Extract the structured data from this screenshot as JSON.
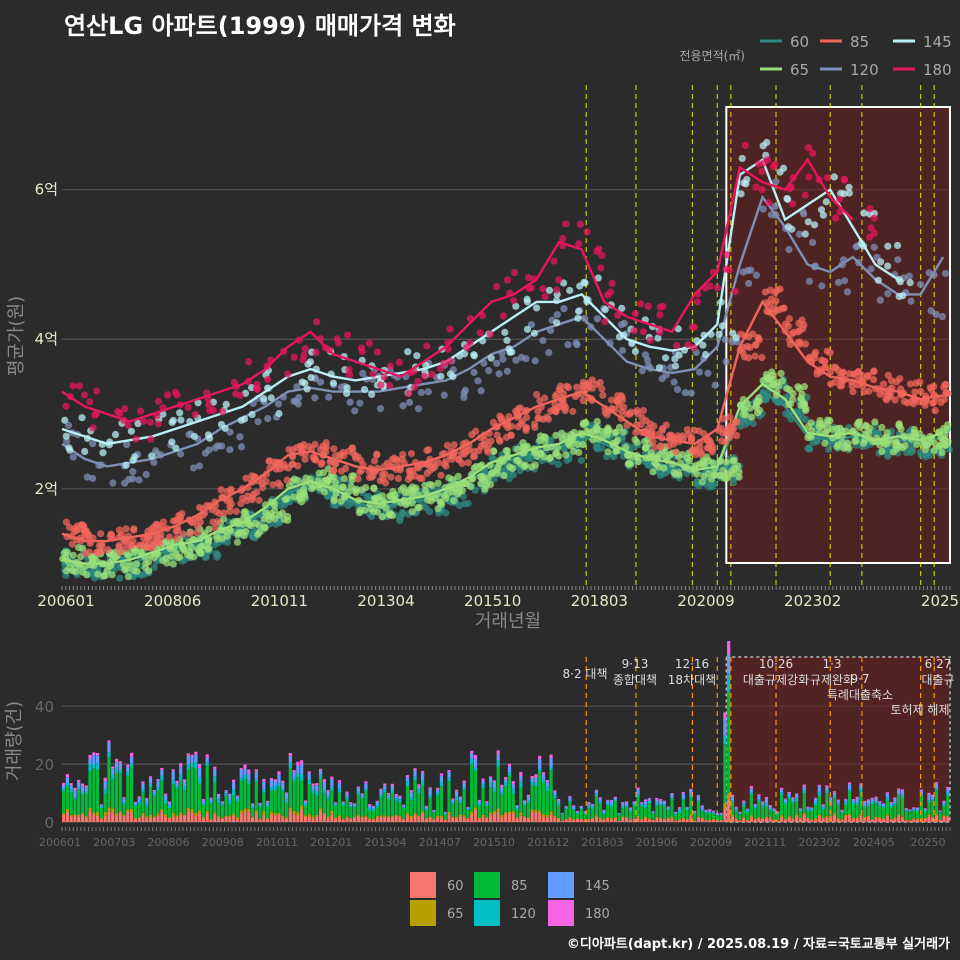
{
  "title": "연산LG 아파트(1999) 매매가격 변화",
  "credit": "©디아파트(dapt.kr) / 2025.08.19 / 자료=국토교통부 실거래가",
  "colors": {
    "bg": "#2b2b2b",
    "grid": "#555555",
    "title": "#ffffff",
    "area60": "#2e8b82",
    "area65": "#9be07a",
    "area85": "#f0665c",
    "area120": "#7f8fb5",
    "area145": "#b8f0f5",
    "area180": "#e8175d",
    "vol60": "#f8766d",
    "vol65": "#b79f00",
    "vol85": "#00ba38",
    "vol120": "#00bfc4",
    "vol145": "#619cff",
    "vol180": "#f564e3",
    "policy_line": "#e6e600",
    "policy_line_lower": "#ff9900",
    "highlight_fill": "#6b1e1e",
    "highlight_border": "#ffffff"
  },
  "chart_data": [
    {
      "type": "line",
      "title": "연산LG 아파트(1999) 매매가격 변화",
      "xlabel": "거래년월",
      "ylabel": "평균가(원)",
      "x_tick_labels": [
        "200601",
        "200806",
        "201011",
        "201304",
        "201510",
        "201803",
        "202009",
        "202302",
        "2025"
      ],
      "y_ticks": [
        2,
        4,
        6
      ],
      "y_tick_labels": [
        "2억",
        "4억",
        "6억"
      ],
      "ylim": [
        0.7,
        7.4
      ],
      "legend_title": "전용면적(㎡)",
      "legend_position": "top-right",
      "x": [
        2006.0,
        2006.5,
        2007.0,
        2007.5,
        2008.0,
        2008.5,
        2009.0,
        2009.5,
        2010.0,
        2010.5,
        2011.0,
        2011.5,
        2012.0,
        2012.5,
        2013.0,
        2013.5,
        2014.0,
        2014.5,
        2015.0,
        2015.5,
        2016.0,
        2016.5,
        2017.0,
        2017.5,
        2018.0,
        2018.5,
        2019.0,
        2019.5,
        2020.0,
        2020.5,
        2021.0,
        2021.5,
        2022.0,
        2022.5,
        2023.0,
        2023.5,
        2024.0,
        2024.5,
        2025.0,
        2025.5
      ],
      "series": [
        {
          "name": "60",
          "values": [
            1.0,
            0.95,
            0.97,
            1.0,
            1.1,
            1.2,
            1.25,
            1.4,
            1.5,
            1.7,
            1.95,
            2.05,
            1.95,
            1.8,
            1.75,
            1.8,
            1.85,
            1.95,
            2.1,
            2.3,
            2.4,
            2.5,
            2.55,
            2.7,
            2.6,
            2.45,
            2.35,
            2.3,
            2.2,
            2.25,
            3.0,
            3.3,
            3.1,
            2.7,
            2.65,
            2.7,
            2.6,
            2.65,
            2.6,
            2.7
          ]
        },
        {
          "name": "65",
          "values": [
            1.05,
            1.0,
            1.0,
            1.05,
            1.15,
            1.25,
            1.3,
            1.45,
            1.55,
            1.75,
            2.0,
            2.1,
            2.0,
            1.85,
            1.8,
            1.85,
            1.9,
            2.0,
            2.15,
            2.35,
            2.45,
            2.55,
            2.6,
            2.75,
            2.65,
            2.5,
            2.4,
            2.35,
            2.25,
            2.3,
            3.1,
            3.4,
            3.2,
            2.75,
            2.7,
            2.75,
            2.65,
            2.7,
            2.65,
            2.75
          ]
        },
        {
          "name": "85",
          "values": [
            1.4,
            1.3,
            1.3,
            1.35,
            1.4,
            1.5,
            1.65,
            1.85,
            2.0,
            2.2,
            2.45,
            2.5,
            2.4,
            2.3,
            2.25,
            2.3,
            2.35,
            2.45,
            2.6,
            2.8,
            2.95,
            3.1,
            3.2,
            3.3,
            3.1,
            2.9,
            2.7,
            2.65,
            2.6,
            2.8,
            3.9,
            4.5,
            4.1,
            3.7,
            3.5,
            3.45,
            3.35,
            3.3,
            3.2,
            3.25
          ]
        },
        {
          "name": "120",
          "values": [
            2.6,
            2.4,
            2.3,
            2.35,
            2.4,
            2.5,
            2.6,
            2.8,
            2.95,
            3.1,
            3.3,
            3.35,
            3.3,
            3.3,
            3.3,
            3.35,
            3.4,
            3.45,
            3.6,
            3.8,
            3.9,
            4.1,
            4.2,
            4.3,
            4.0,
            3.7,
            3.6,
            3.55,
            3.6,
            3.9,
            5.0,
            5.9,
            5.5,
            5.0,
            4.9,
            5.1,
            4.8,
            4.6,
            4.6,
            5.1
          ]
        },
        {
          "name": "145",
          "values": [
            2.8,
            2.7,
            2.6,
            2.65,
            2.7,
            2.8,
            2.9,
            3.0,
            3.1,
            3.3,
            3.5,
            3.6,
            3.5,
            3.45,
            3.5,
            3.55,
            3.6,
            3.7,
            3.9,
            4.1,
            4.3,
            4.5,
            4.5,
            4.6,
            4.3,
            4.0,
            3.9,
            3.85,
            3.9,
            4.2,
            6.2,
            6.4,
            5.6,
            5.8,
            6.0,
            5.5,
            5.0,
            4.8,
            null,
            null
          ]
        },
        {
          "name": "180",
          "values": [
            3.3,
            3.1,
            3.0,
            2.9,
            3.0,
            3.1,
            3.2,
            3.3,
            3.4,
            3.6,
            3.9,
            4.1,
            3.8,
            3.7,
            3.6,
            3.5,
            3.7,
            3.9,
            4.2,
            4.5,
            4.6,
            4.8,
            5.3,
            5.2,
            4.5,
            4.3,
            4.2,
            4.1,
            4.6,
            4.9,
            6.3,
            6.1,
            6.0,
            6.4,
            5.9,
            5.6,
            null,
            null,
            null,
            null
          ]
        }
      ],
      "policy_dates": [
        2017.6,
        2018.7,
        2019.95,
        2020.5,
        2020.8,
        2021.8,
        2023.0,
        2023.7,
        2025.0,
        2025.3
      ],
      "highlight_range": [
        2020.7,
        2025.65
      ]
    },
    {
      "type": "bar",
      "stacked": true,
      "ylabel": "거래량(건)",
      "y_ticks": [
        0,
        20,
        40
      ],
      "ylim": [
        0,
        57
      ],
      "x_tick_labels": [
        "200601",
        "200703",
        "200806",
        "200908",
        "201011",
        "201201",
        "201304",
        "201407",
        "201510",
        "201612",
        "201803",
        "201906",
        "202009",
        "202111",
        "202302",
        "202405",
        "20250"
      ],
      "series_names": [
        "60",
        "65",
        "85",
        "120",
        "145",
        "180"
      ],
      "legend_position": "bottom",
      "monthly_total_profile": [
        {
          "period": "2006-2008",
          "approx_total": 16
        },
        {
          "period": "2009-2011",
          "approx_total": 14
        },
        {
          "period": "2012-2014",
          "approx_total": 11
        },
        {
          "period": "2015-2016",
          "approx_total": 15
        },
        {
          "period": "2017-2020",
          "approx_total": 7
        },
        {
          "period": "2020-08 (peak)",
          "approx_total": 55
        },
        {
          "period": "2021-2025",
          "approx_total": 8
        }
      ],
      "policy_events": [
        {
          "date_label": "8·2 대책",
          "text": ""
        },
        {
          "date_label": "9·13",
          "text": "종합대책"
        },
        {
          "date_label": "12·16",
          "text": "18차대책"
        },
        {
          "date_label": "10·26",
          "text": "대출규제강화"
        },
        {
          "date_label": "1·3",
          "text": "규제완화"
        },
        {
          "date_label": "9·7",
          "text": "특례대출축소"
        },
        {
          "date_label": "",
          "text": "토허제 해제"
        },
        {
          "date_label": "6·27",
          "text": "대출규"
        }
      ]
    }
  ]
}
